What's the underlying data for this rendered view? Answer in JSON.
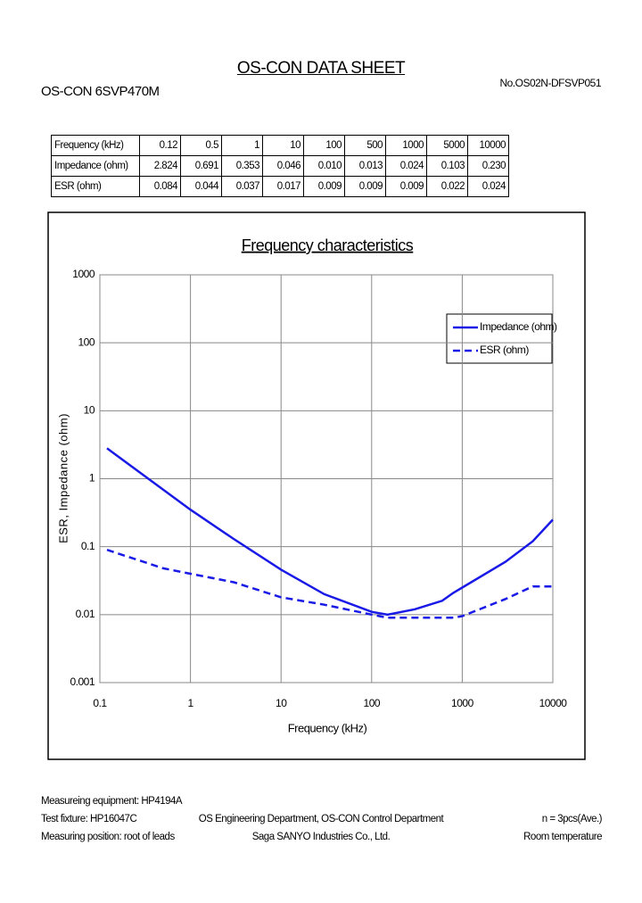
{
  "header": {
    "title": "OS-CON DATA SHEET",
    "model": "OS-CON 6SVP470M",
    "doc_no": "No.OS02N-DFSVP051"
  },
  "table": {
    "rows": [
      [
        "Frequency (kHz)",
        "0.12",
        "0.5",
        "1",
        "10",
        "100",
        "500",
        "1000",
        "5000",
        "10000"
      ],
      [
        "Impedance (ohm)",
        "2.824",
        "0.691",
        "0.353",
        "0.046",
        "0.010",
        "0.013",
        "0.024",
        "0.103",
        "0.230"
      ],
      [
        "ESR (ohm)",
        "0.084",
        "0.044",
        "0.037",
        "0.017",
        "0.009",
        "0.009",
        "0.009",
        "0.022",
        "0.024"
      ]
    ]
  },
  "chart_data": {
    "type": "line",
    "title": "Frequency characteristics",
    "x_label": "Frequency (kHz)",
    "y_label": "ESR, Impedance (ohm)",
    "x": [
      0.12,
      0.5,
      1,
      3,
      10,
      30,
      100,
      150,
      300,
      600,
      800,
      1000,
      3000,
      6000,
      10000
    ],
    "series": [
      {
        "name": "Impedance (ohm)",
        "color": "#1a1ae6",
        "linestyle": "solid",
        "values": [
          2.8,
          0.69,
          0.35,
          0.13,
          0.046,
          0.02,
          0.011,
          0.01,
          0.012,
          0.016,
          0.021,
          0.025,
          0.06,
          0.12,
          0.25
        ]
      },
      {
        "name": "ESR (ohm)",
        "color": "#1a1ae6",
        "linestyle": "dashed",
        "values": [
          0.09,
          0.048,
          0.04,
          0.03,
          0.018,
          0.014,
          0.01,
          0.009,
          0.009,
          0.009,
          0.009,
          0.0095,
          0.017,
          0.026,
          0.026
        ]
      }
    ],
    "xlim": [
      0.1,
      10000
    ],
    "ylim": [
      0.001,
      1000
    ],
    "xticks": [
      0.1,
      1,
      10,
      100,
      1000,
      10000
    ],
    "yticks": [
      0.001,
      0.01,
      0.1,
      1,
      10,
      100,
      1000
    ],
    "xscale": "log",
    "yscale": "log",
    "grid": true,
    "legend": "upper right"
  },
  "footer": {
    "left": [
      "Measureing equipment: HP4194A",
      "Test fixture: HP16047C",
      "Measuring position: root of leads"
    ],
    "center": [
      "OS Engineering Department, OS-CON Control Department",
      "Saga SANYO Industries Co., Ltd."
    ],
    "right": [
      "n = 3pcs(Ave.)",
      "Room temperature"
    ]
  }
}
